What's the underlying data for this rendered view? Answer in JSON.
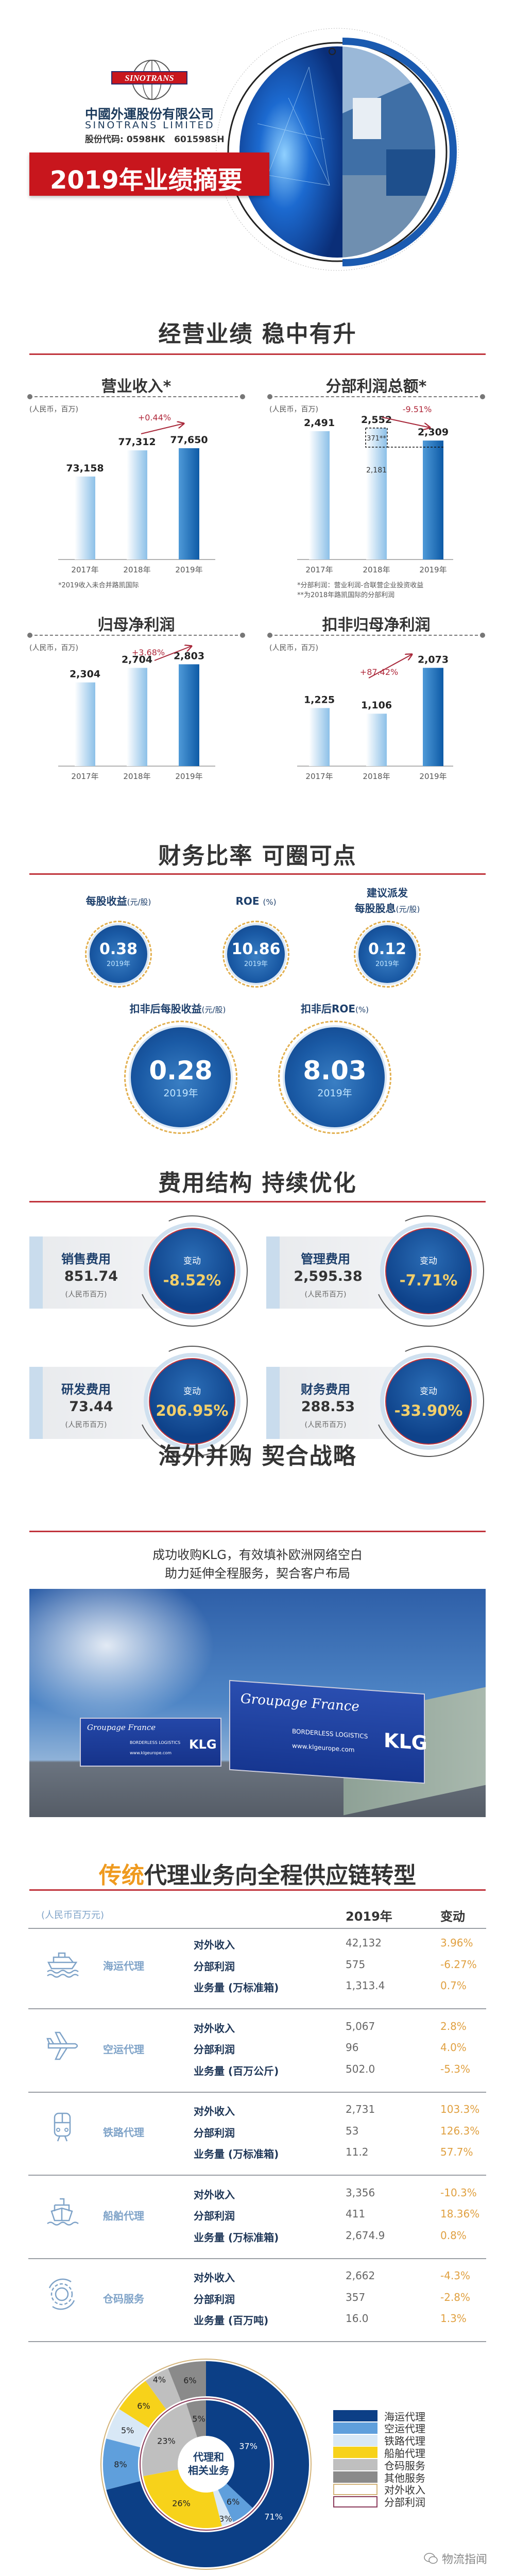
{
  "header": {
    "logo_text": "SINOTRANS",
    "company_cn": "中國外運股份有限公司",
    "company_en": "SINOTRANS LIMITED",
    "stock_codes": "股份代码: 0598HK   601598SH",
    "banner": "2019年业绩摘要",
    "colors": {
      "banner": "#c8161d",
      "accent_blue": "#1a5aa5"
    }
  },
  "performance": {
    "title": "经营业绩 稳中有升"
  },
  "chart_data": [
    {
      "type": "bar",
      "title": "营业收入*",
      "unit": "(人民币，百万)",
      "categories": [
        "2017年",
        "2018年",
        "2019年"
      ],
      "values": [
        73158,
        77312,
        77650
      ],
      "value_labels": [
        "73,158",
        "77,312",
        "77,650"
      ],
      "change": {
        "from": "2018年",
        "to": "2019年",
        "label": "+0.44%",
        "direction": "up"
      },
      "footnotes": [
        "*2019收入未合并路凯国际"
      ]
    },
    {
      "type": "bar",
      "title": "分部利润总额*",
      "unit": "(人民币，百万)",
      "categories": [
        "2017年",
        "2018年",
        "2019年"
      ],
      "values": [
        2491,
        2552,
        2309
      ],
      "value_labels": [
        "2,491",
        "2,552",
        "2,309"
      ],
      "breakdown_2018": {
        "base": 2181,
        "base_label": "2,181",
        "extra": 371,
        "extra_label": "371**"
      },
      "change": {
        "from": "2018年",
        "to": "2019年",
        "label": "-9.51%",
        "direction": "down"
      },
      "footnotes": [
        "*分部利润：营业利润-合联营企业投资收益",
        "**为2018年路凯国际的分部利润"
      ]
    },
    {
      "type": "bar",
      "title": "归母净利润",
      "unit": "(人民币，百万)",
      "categories": [
        "2017年",
        "2018年",
        "2019年"
      ],
      "values": [
        2304,
        2704,
        2803
      ],
      "value_labels": [
        "2,304",
        "2,704",
        "2,803"
      ],
      "change": {
        "from": "2018年",
        "to": "2019年",
        "label": "+3.68%",
        "direction": "up"
      },
      "footnotes": []
    },
    {
      "type": "bar",
      "title": "扣非归母净利润",
      "unit": "(人民币，百万)",
      "categories": [
        "2017年",
        "2018年",
        "2019年"
      ],
      "values": [
        1225,
        1106,
        2073
      ],
      "value_labels": [
        "1,225",
        "1,106",
        "2,073"
      ],
      "change": {
        "from": "2018年",
        "to": "2019年",
        "label": "+87.42%",
        "direction": "up"
      },
      "footnotes": []
    },
    {
      "type": "pie",
      "center_label": "代理和相关业务",
      "center_line1": "代理和",
      "center_line2": "相关业务",
      "categories": [
        "海运代理",
        "空运代理",
        "铁路代理",
        "船舶代理",
        "仓码服务",
        "其他服务"
      ],
      "colors": [
        "#0c3f86",
        "#5f9fdc",
        "#d8e8f6",
        "#f7d21a",
        "#bfbfbf",
        "#8a8a8a"
      ],
      "series": [
        {
          "name": "对外收入",
          "ring": "outer",
          "values": [
            71,
            8,
            5,
            6,
            4,
            6
          ],
          "ring_color": "#d4b47a"
        },
        {
          "name": "分部利润",
          "ring": "inner",
          "values": [
            37,
            6,
            3,
            26,
            23,
            5
          ],
          "ring_color": "#8a3a5a"
        }
      ],
      "legend": "right"
    }
  ],
  "ratios": {
    "title": "财务比率 可圈可点",
    "items": [
      {
        "label": "每股收益",
        "unit": "(元/股)",
        "value": "0.38",
        "year": "2019年"
      },
      {
        "label": "ROE",
        "unit": "(%)",
        "value": "10.86",
        "year": "2019年"
      },
      {
        "label": "建议派发",
        "label2": "每股股息",
        "unit": "(元/股)",
        "value": "0.12",
        "year": "2019年"
      },
      {
        "label": "扣非后每股收益",
        "unit": "(元/股)",
        "value": "0.28",
        "year": "2019年"
      },
      {
        "label": "扣非后ROE",
        "unit": "(%)",
        "value": "8.03",
        "year": "2019年"
      }
    ]
  },
  "expenses": {
    "title": "费用结构 持续优化",
    "change_label": "变动",
    "unit": "(人民币百万)",
    "items": [
      {
        "name": "销售费用",
        "value": "851.74",
        "change": "-8.52%"
      },
      {
        "name": "管理费用",
        "value": "2,595.38",
        "change": "-7.71%"
      },
      {
        "name": "研发费用",
        "value": "73.44",
        "change": "206.95%"
      },
      {
        "name": "财务费用",
        "value": "288.53",
        "change": "-33.90%"
      }
    ]
  },
  "overseas": {
    "title": "海外并购 契合战略",
    "line1": "成功收购KLG，有效填补欧洲网络空白",
    "line2": "助力延伸全程服务，契合客户布局",
    "photo_text": {
      "script": "Groupage France",
      "tagline": "BORDERLESS LOGISTICS",
      "url": "www.klgeurope.com",
      "logo": "KLG"
    }
  },
  "segments": {
    "title_highlight": "传统",
    "title_rest": "代理业务向全程供应链转型",
    "unit": "(人民币百万元)",
    "col_year": "2019年",
    "col_change": "变动",
    "items": [
      {
        "icon": "cruise-ship-icon",
        "label": "海运代理",
        "rows": [
          {
            "metric": "对外收入",
            "value": "42,132",
            "change": "3.96%"
          },
          {
            "metric": "分部利润",
            "value": "575",
            "change": "-6.27%"
          },
          {
            "metric": "业务量 (万标准箱)",
            "value": "1,313.4",
            "change": "0.7%"
          }
        ]
      },
      {
        "icon": "airplane-icon",
        "label": "空运代理",
        "rows": [
          {
            "metric": "对外收入",
            "value": "5,067",
            "change": "2.8%"
          },
          {
            "metric": "分部利润",
            "value": "96",
            "change": "4.0%"
          },
          {
            "metric": "业务量 (百万公斤)",
            "value": "502.0",
            "change": "-5.3%"
          }
        ]
      },
      {
        "icon": "train-icon",
        "label": "铁路代理",
        "rows": [
          {
            "metric": "对外收入",
            "value": "2,731",
            "change": "103.3%"
          },
          {
            "metric": "分部利润",
            "value": "53",
            "change": "126.3%"
          },
          {
            "metric": "业务量 (万标准箱)",
            "value": "11.2",
            "change": "57.7%"
          }
        ]
      },
      {
        "icon": "vessel-icon",
        "label": "船舶代理",
        "rows": [
          {
            "metric": "对外收入",
            "value": "3,356",
            "change": "-10.3%"
          },
          {
            "metric": "分部利润",
            "value": "411",
            "change": "18.36%"
          },
          {
            "metric": "业务量 (万标准箱)",
            "value": "2,674.9",
            "change": "0.8%"
          }
        ]
      },
      {
        "icon": "gear-icon",
        "label": "仓码服务",
        "rows": [
          {
            "metric": "对外收入",
            "value": "2,662",
            "change": "-4.3%"
          },
          {
            "metric": "分部利润",
            "value": "357",
            "change": "-2.8%"
          },
          {
            "metric": "业务量 (百万吨)",
            "value": "16.0",
            "change": "1.3%"
          }
        ]
      }
    ]
  },
  "watermark": "物流指闻"
}
